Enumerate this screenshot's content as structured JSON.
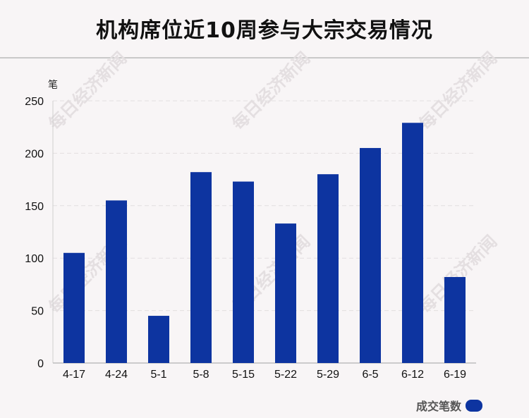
{
  "chart_data": {
    "type": "bar",
    "title": "机构席位近10周参与大宗交易情况",
    "ylabel": "笔",
    "xlabel": "",
    "categories": [
      "4-17",
      "4-24",
      "5-1",
      "5-8",
      "5-15",
      "5-22",
      "5-29",
      "6-5",
      "6-12",
      "6-19"
    ],
    "series": [
      {
        "name": "成交笔数",
        "values": [
          105,
          155,
          45,
          182,
          173,
          133,
          180,
          205,
          229,
          82
        ]
      }
    ],
    "ylim": [
      0,
      250
    ],
    "yticks": [
      "0",
      "50",
      "100",
      "150",
      "200",
      "250"
    ],
    "grid": true,
    "legend": "bottom-right",
    "bar_color": "#0d34a0"
  },
  "watermark": "每日经济新闻"
}
